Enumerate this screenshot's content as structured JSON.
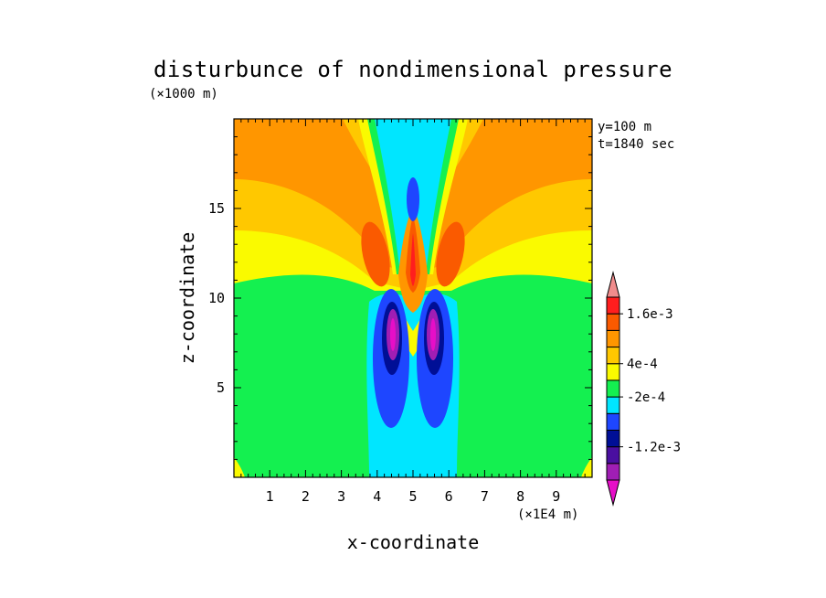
{
  "chart_data": {
    "type": "heatmap",
    "title": "disturbunce of nondimensional pressure",
    "xlabel": "x-coordinate",
    "ylabel": "z-coordinate",
    "x_unit": "(×1E4 m)",
    "y_unit": "(×1000 m)",
    "annotations": [
      "y=100 m",
      "t=1840 sec"
    ],
    "xlim": [
      0,
      10
    ],
    "ylim": [
      0,
      20
    ],
    "x_ticks": [
      1,
      2,
      3,
      4,
      5,
      6,
      7,
      8,
      9
    ],
    "y_ticks": [
      5,
      10,
      15
    ],
    "x_tick_labels": [
      "1",
      "2",
      "3",
      "4",
      "5",
      "6",
      "7",
      "8",
      "9"
    ],
    "y_tick_labels": [
      "5",
      "10",
      "15"
    ],
    "colorbar": {
      "levels": [
        -0.002,
        -0.0016,
        -0.0012,
        -0.0008,
        -0.0004,
        -0.0002,
        0.0002,
        0.0004,
        0.0008,
        0.0012,
        0.0016,
        0.002
      ],
      "colors": [
        "#e60ec8",
        "#a01eb4",
        "#4a0fa0",
        "#000f96",
        "#1e46ff",
        "#00e6ff",
        "#14f050",
        "#fafa00",
        "#ffc800",
        "#ff9600",
        "#fa5a00",
        "#ff1e1e",
        "#f08c8c"
      ],
      "labels": [
        {
          "value": 0.0016,
          "text": "1.6e-3"
        },
        {
          "value": 0.0004,
          "text": "4e-4"
        },
        {
          "value": -0.0002,
          "text": "-2e-4"
        },
        {
          "value": -0.0012,
          "text": "-1.2e-3"
        }
      ]
    }
  }
}
